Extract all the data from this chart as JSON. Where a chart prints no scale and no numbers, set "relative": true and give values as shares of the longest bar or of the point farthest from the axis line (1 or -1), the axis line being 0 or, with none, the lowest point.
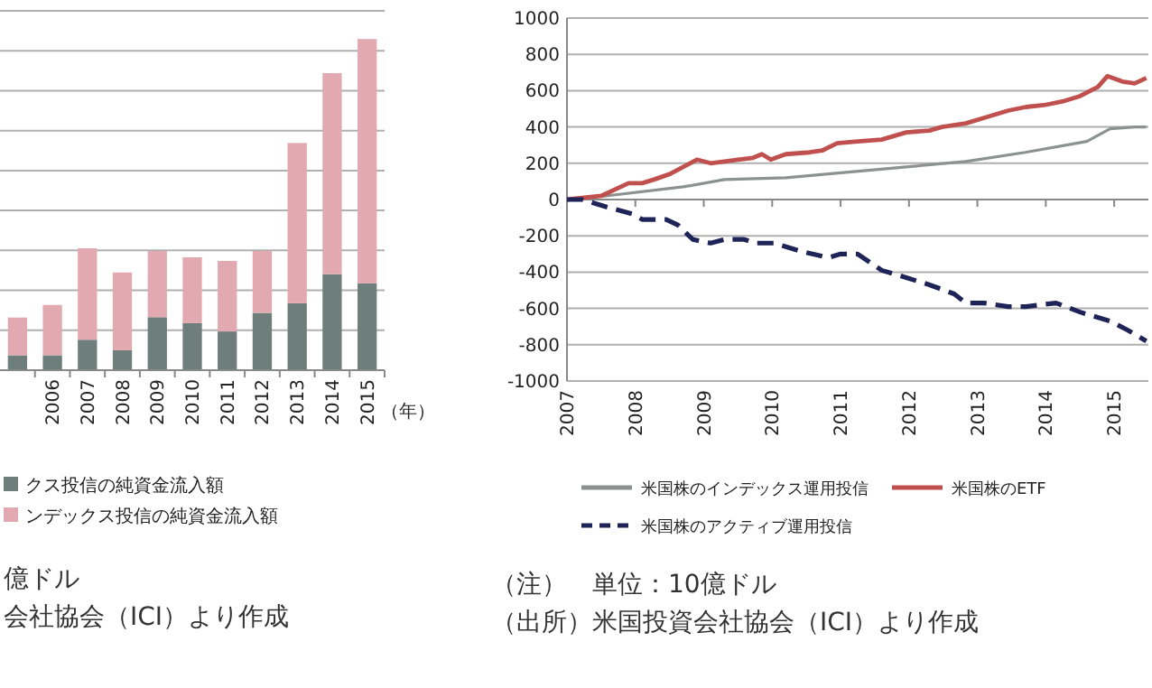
{
  "chart_data": [
    {
      "type": "bar",
      "stacked": true,
      "relative": true,
      "grid": true,
      "legend": "bottom",
      "xlabel": "（年）",
      "categories": [
        null,
        "2006",
        "2007",
        "2008",
        "2009",
        "2010",
        "2011",
        "2012",
        "2013",
        "2014",
        "2015"
      ],
      "series": [
        {
          "name": "クス投信の純資金流入額",
          "color": "#6e7f7b",
          "values": [
            0.045,
            0.045,
            0.092,
            0.06,
            0.16,
            0.142,
            0.117,
            0.173,
            0.202,
            0.29,
            0.262
          ]
        },
        {
          "name": "ンデックス投信の純資金流入額",
          "color": "#e2a9b1",
          "values": [
            0.114,
            0.152,
            0.276,
            0.235,
            0.2,
            0.199,
            0.213,
            0.187,
            0.484,
            0.607,
            0.738
          ]
        }
      ],
      "annotations": [
        "億ドル",
        "会社協会（ICI）より作成"
      ]
    },
    {
      "type": "line",
      "grid": "y",
      "legend": "bottom",
      "xlim": [
        2007,
        2015.5
      ],
      "xticks": [
        2007,
        2008,
        2009,
        2010,
        2011,
        2012,
        2013,
        2014,
        2015
      ],
      "ylim": [
        -1000,
        1000
      ],
      "yticks": [
        -1000,
        -800,
        -600,
        -400,
        -200,
        0,
        200,
        400,
        600,
        800,
        1000
      ],
      "series": [
        {
          "name": "米国株のインデックス運用投信",
          "color": "#8c9290",
          "line_style": "solid",
          "x": [
            2007,
            2007.57,
            2008.7,
            2009.3,
            2010.2,
            2011.08,
            2011.96,
            2012.83,
            2013.7,
            2014.6,
            2014.94,
            2015.3,
            2015.47
          ],
          "values": [
            0,
            20,
            70,
            110,
            120,
            150,
            180,
            210,
            260,
            320,
            390,
            400,
            400
          ]
        },
        {
          "name": "米国株のETF",
          "color": "#c0504d",
          "line_style": "solid",
          "x": [
            2007,
            2007.5,
            2007.9,
            2008.1,
            2008.27,
            2008.5,
            2008.8,
            2008.9,
            2009.1,
            2009.5,
            2009.72,
            2009.85,
            2009.98,
            2010.2,
            2010.55,
            2010.73,
            2010.95,
            2011.25,
            2011.6,
            2011.96,
            2012.3,
            2012.48,
            2012.83,
            2013.1,
            2013.45,
            2013.71,
            2013.97,
            2014.24,
            2014.5,
            2014.76,
            2014.9,
            2015.12,
            2015.3,
            2015.47
          ],
          "values": [
            0,
            20,
            90,
            90,
            110,
            140,
            200,
            220,
            200,
            220,
            230,
            250,
            220,
            250,
            260,
            270,
            310,
            320,
            330,
            370,
            380,
            400,
            420,
            450,
            490,
            510,
            520,
            540,
            570,
            620,
            680,
            650,
            640,
            670
          ]
        },
        {
          "name": "米国株のアクティブ運用投信",
          "color": "#1f2458",
          "line_style": "dashed",
          "x": [
            2007,
            2007.22,
            2007.57,
            2007.96,
            2008.1,
            2008.45,
            2008.62,
            2008.84,
            2009.1,
            2009.3,
            2009.59,
            2009.76,
            2010.03,
            2010.2,
            2010.47,
            2010.82,
            2011.0,
            2011.25,
            2011.6,
            2011.96,
            2012.3,
            2012.66,
            2012.83,
            2013.1,
            2013.45,
            2013.71,
            2014.15,
            2014.5,
            2014.94,
            2015.2,
            2015.47
          ],
          "values": [
            0,
            0,
            -40,
            -80,
            -110,
            -110,
            -140,
            -220,
            -240,
            -220,
            -220,
            -240,
            -240,
            -260,
            -290,
            -320,
            -300,
            -300,
            -390,
            -430,
            -470,
            -520,
            -570,
            -570,
            -590,
            -590,
            -570,
            -620,
            -670,
            -720,
            -780
          ]
        }
      ],
      "annotations": [
        "（注）　単位：10億ドル",
        "（出所）米国投資会社協会（ICI）より作成"
      ]
    }
  ]
}
